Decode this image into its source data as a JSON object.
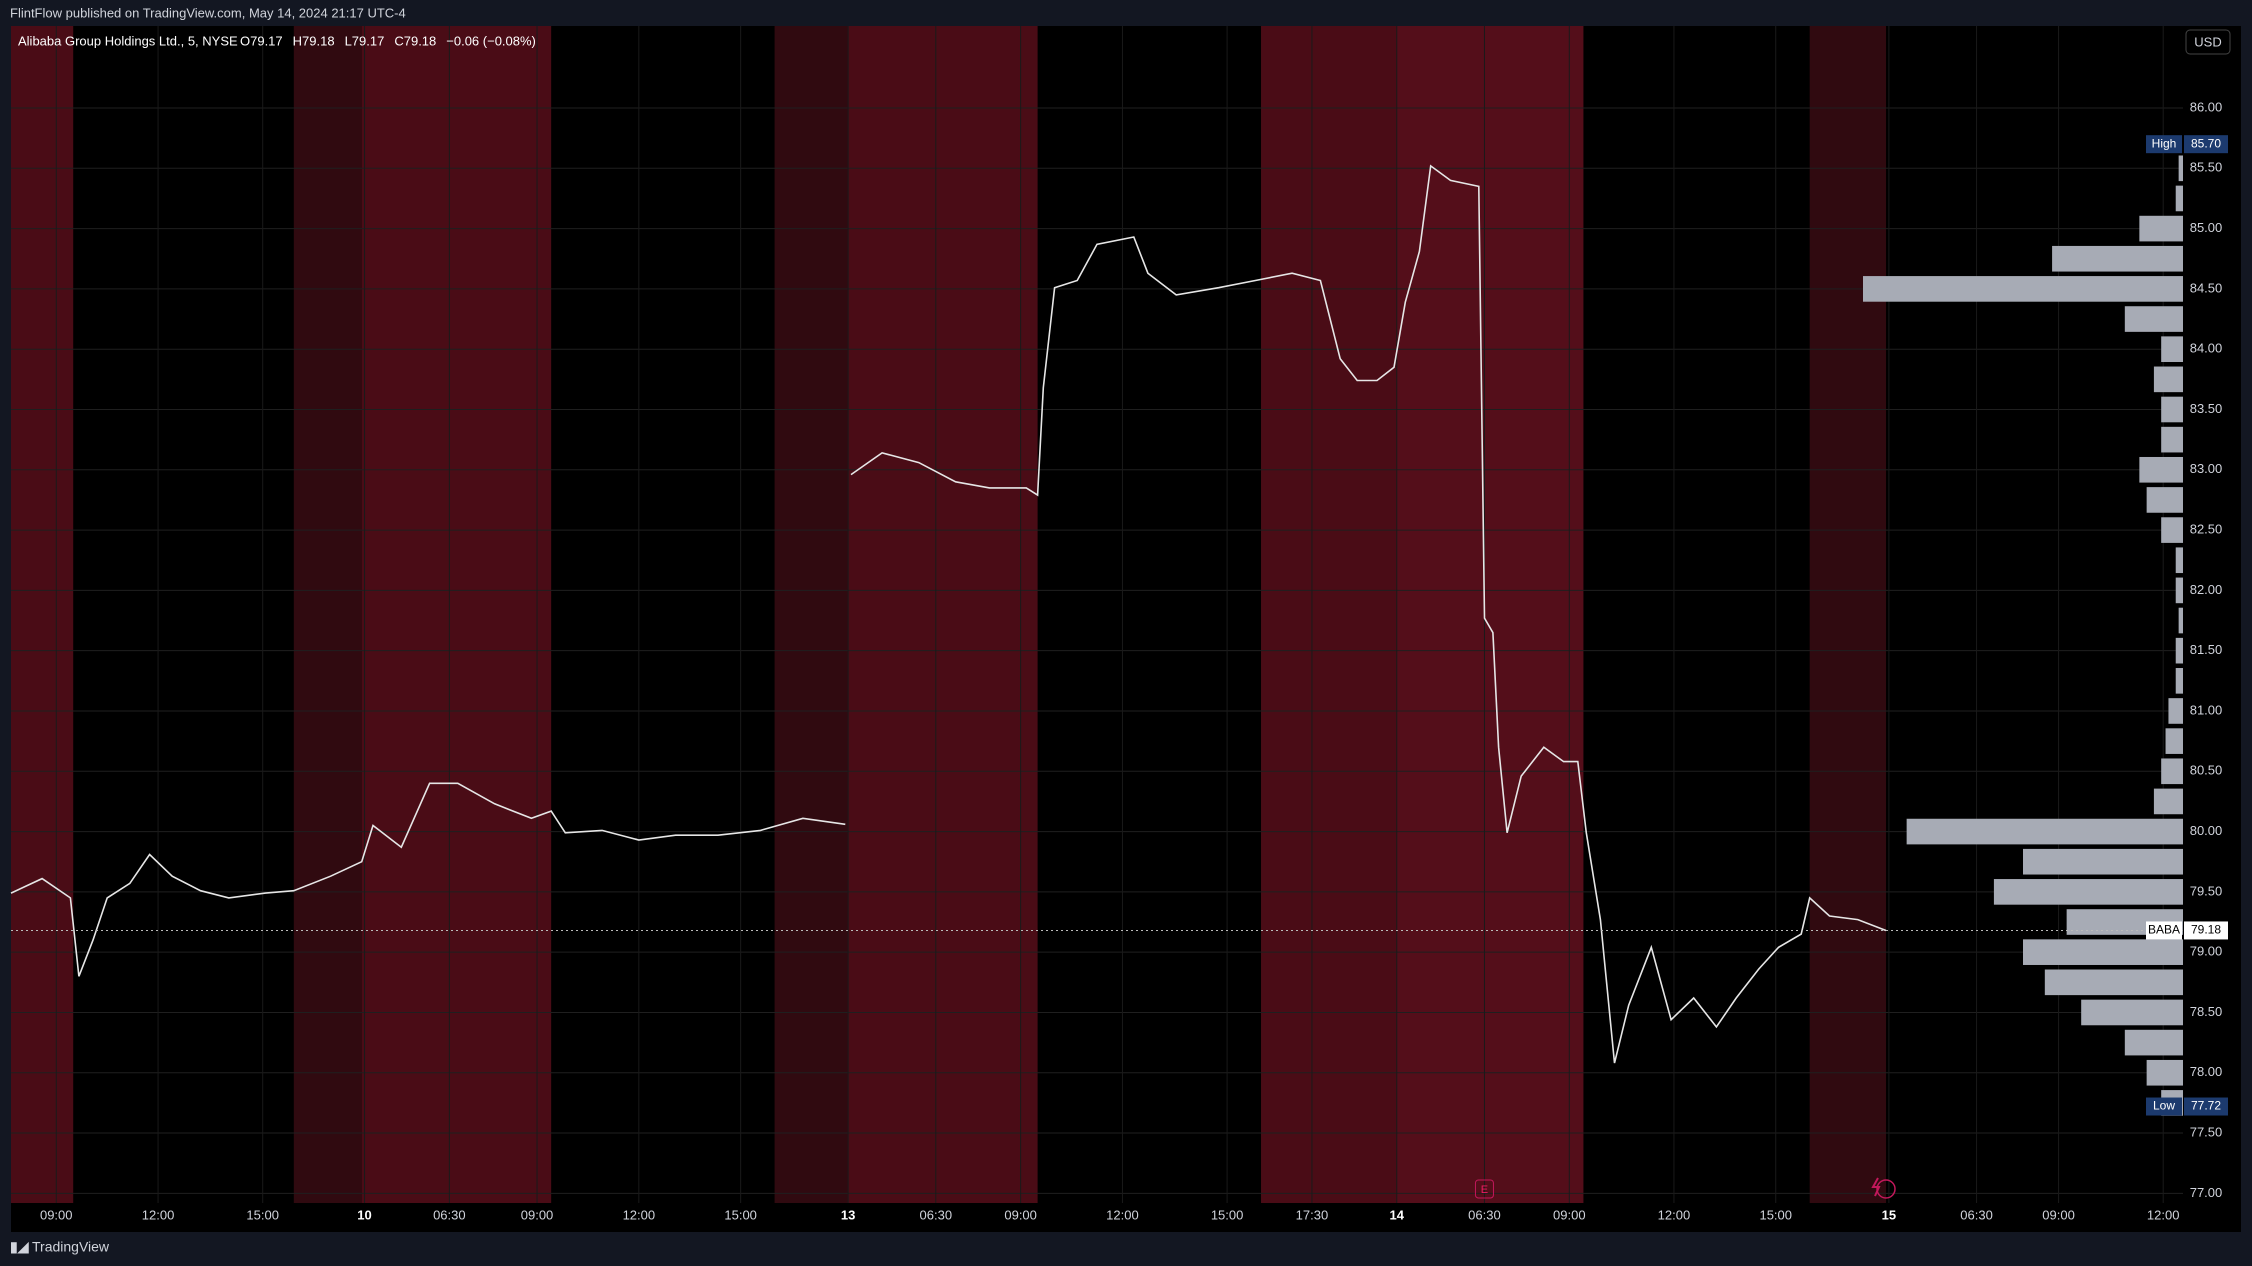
{
  "header": {
    "publisher": "FlintFlow published on TradingView.com, May 14, 2024 21:17 UTC-4",
    "brand": "TradingView"
  },
  "chart_data": {
    "type": "line",
    "symbol": "Alibaba Group Holdings Ltd., 5, NYSE",
    "legend": [
      "O79.17",
      "H79.18",
      "L79.17",
      "C79.18",
      "−0.06 (−0.08%)"
    ],
    "currency": "USD",
    "color": "#e6e6e6",
    "x": [
      0,
      11,
      21,
      24,
      29,
      34,
      42,
      49,
      57,
      67,
      77,
      90,
      100,
      113,
      124,
      128,
      138,
      148,
      158,
      171,
      184,
      191,
      196,
      209,
      222,
      235,
      250,
      265,
      280,
      295,
      296,
      297,
      308,
      321,
      334,
      346,
      359,
      363,
      365,
      369,
      377,
      384,
      397,
      402,
      412,
      427,
      440,
      453,
      463,
      470,
      476,
      483,
      489,
      493,
      498,
      502,
      509,
      519,
      521,
      524,
      526,
      529,
      534,
      542,
      549,
      554,
      557,
      562,
      567,
      572,
      580,
      587,
      595,
      603,
      610,
      618,
      625,
      633,
      636,
      643,
      653,
      663
    ],
    "values": [
      79.49,
      79.61,
      79.45,
      78.8,
      79.1,
      79.45,
      79.57,
      79.81,
      79.63,
      79.51,
      79.45,
      79.49,
      79.51,
      79.63,
      79.75,
      80.05,
      79.87,
      80.4,
      80.4,
      80.23,
      80.11,
      80.17,
      79.99,
      80.01,
      79.93,
      79.97,
      79.97,
      80.01,
      80.11,
      80.06,
      null,
      82.96,
      83.14,
      83.06,
      82.9,
      82.85,
      82.85,
      82.79,
      83.68,
      84.51,
      84.57,
      84.87,
      84.93,
      84.63,
      84.45,
      84.51,
      84.57,
      84.63,
      84.57,
      83.92,
      83.74,
      83.74,
      83.85,
      84.39,
      84.81,
      85.52,
      85.4,
      85.35,
      81.77,
      81.65,
      80.7,
      79.99,
      80.46,
      80.7,
      80.58,
      80.58,
      79.99,
      79.27,
      78.08,
      78.56,
      79.04,
      78.44,
      78.62,
      78.38,
      78.62,
      78.86,
      79.04,
      79.15,
      79.45,
      79.3,
      79.27,
      79.18
    ],
    "xlim": [
      0,
      768
    ],
    "xticks": [
      {
        "value": 16,
        "label": "09:00"
      },
      {
        "value": 52,
        "label": "12:00"
      },
      {
        "value": 89,
        "label": "15:00"
      },
      {
        "value": 125,
        "label": "10"
      },
      {
        "value": 155,
        "label": "06:30"
      },
      {
        "value": 186,
        "label": "09:00"
      },
      {
        "value": 222,
        "label": "12:00"
      },
      {
        "value": 258,
        "label": "15:00"
      },
      {
        "value": 296,
        "label": "13"
      },
      {
        "value": 327,
        "label": "06:30"
      },
      {
        "value": 357,
        "label": "09:00"
      },
      {
        "value": 393,
        "label": "12:00"
      },
      {
        "value": 430,
        "label": "15:00"
      },
      {
        "value": 460,
        "label": "17:30"
      },
      {
        "value": 490,
        "label": "14"
      },
      {
        "value": 521,
        "label": "06:30"
      },
      {
        "value": 551,
        "label": "09:00"
      },
      {
        "value": 588,
        "label": "12:00"
      },
      {
        "value": 624,
        "label": "15:00"
      },
      {
        "value": 664,
        "label": "15"
      },
      {
        "value": 695,
        "label": "06:30"
      },
      {
        "value": 724,
        "label": "09:00"
      },
      {
        "value": 761,
        "label": "12:00"
      }
    ],
    "ylim": [
      76.92,
      86.68
    ],
    "yticks": [
      {
        "value": 77,
        "label": "77.00"
      },
      {
        "value": 77.5,
        "label": "77.50"
      },
      {
        "value": 78,
        "label": "78.00"
      },
      {
        "value": 78.5,
        "label": "78.50"
      },
      {
        "value": 79,
        "label": "79.00"
      },
      {
        "value": 79.5,
        "label": "79.50"
      },
      {
        "value": 80,
        "label": "80.00"
      },
      {
        "value": 80.5,
        "label": "80.50"
      },
      {
        "value": 81,
        "label": "81.00"
      },
      {
        "value": 81.5,
        "label": "81.50"
      },
      {
        "value": 82,
        "label": "82.00"
      },
      {
        "value": 82.5,
        "label": "82.50"
      },
      {
        "value": 83,
        "label": "83.00"
      },
      {
        "value": 83.5,
        "label": "83.50"
      },
      {
        "value": 84,
        "label": "84.00"
      },
      {
        "value": 84.5,
        "label": "84.50"
      },
      {
        "value": 85,
        "label": "85.00"
      },
      {
        "value": 85.5,
        "label": "85.50"
      },
      {
        "value": 86,
        "label": "86.00"
      }
    ],
    "grid": true,
    "sessions": [
      {
        "start": 0,
        "end": 22,
        "color": "#4a0c16"
      },
      {
        "start": 100,
        "end": 124,
        "color": "#300a10"
      },
      {
        "start": 124,
        "end": 191,
        "color": "#4a0c16"
      },
      {
        "start": 270,
        "end": 296,
        "color": "#300a10"
      },
      {
        "start": 296,
        "end": 363,
        "color": "#4a0c16"
      },
      {
        "start": 442,
        "end": 490,
        "color": "#4a0c16"
      },
      {
        "start": 490,
        "end": 556,
        "color": "#540e1a"
      },
      {
        "start": 636,
        "end": 663,
        "color": "#300a10"
      }
    ],
    "volume_profile": {
      "color": "#a7abb5",
      "prices": [
        77.75,
        78,
        78.25,
        78.5,
        78.75,
        79,
        79.25,
        79.5,
        79.75,
        80,
        80.25,
        80.5,
        80.75,
        81,
        81.25,
        81.5,
        81.75,
        82,
        82.25,
        82.5,
        82.75,
        83,
        83.25,
        83.5,
        83.75,
        84,
        84.25,
        84.5,
        84.75,
        85,
        85.25,
        85.5
      ],
      "volumes": [
        15,
        25,
        40,
        70,
        95,
        110,
        80,
        130,
        110,
        190,
        20,
        15,
        12,
        10,
        5,
        5,
        3,
        5,
        5,
        15,
        25,
        30,
        15,
        15,
        20,
        15,
        40,
        220,
        90,
        30,
        5,
        3
      ]
    },
    "high": {
      "label": "High",
      "value": 85.7,
      "value_label": "85.70"
    },
    "low": {
      "label": "Low",
      "value": 77.72
    },
    "last": {
      "label": "BABA",
      "value": 79.18
    },
    "events": [
      {
        "label": "E",
        "x": 521
      }
    ]
  }
}
